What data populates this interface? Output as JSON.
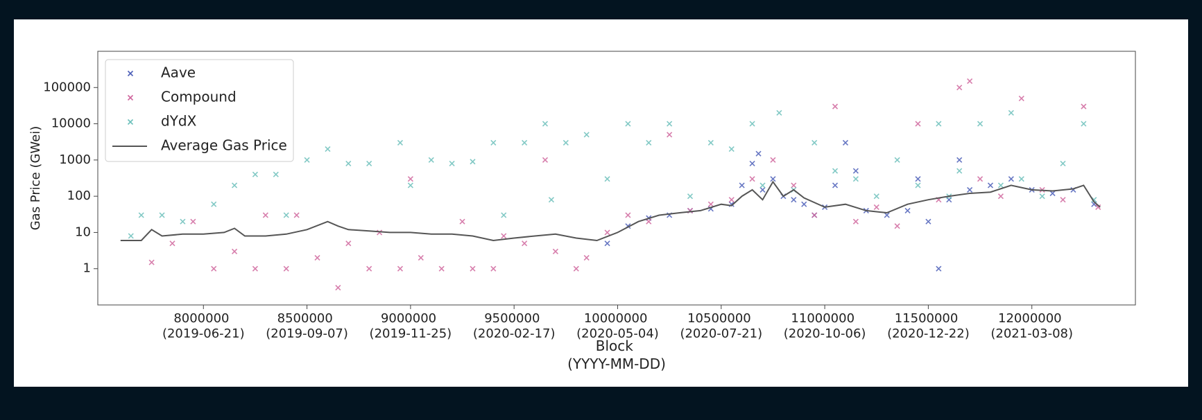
{
  "chart_data": {
    "type": "scatter",
    "xlabel": "Block (YYYY-MM-DD)",
    "ylabel": "Gas Price (GWei)",
    "yscale": "log",
    "xlim": [
      7490000,
      12500000
    ],
    "ylim": [
      0.1,
      1000000
    ],
    "xticks": [
      {
        "value": 8000000,
        "label": "8000000 (2019-06-21)"
      },
      {
        "value": 8500000,
        "label": "8500000 (2019-09-07)"
      },
      {
        "value": 9000000,
        "label": "9000000 (2019-11-25)"
      },
      {
        "value": 9500000,
        "label": "9500000 (2020-02-17)"
      },
      {
        "value": 10000000,
        "label": "10000000 (2020-05-04)"
      },
      {
        "value": 10500000,
        "label": "10500000 (2020-07-21)"
      },
      {
        "value": 11000000,
        "label": "11000000 (2020-10-06)"
      },
      {
        "value": 11500000,
        "label": "11500000 (2020-12-22)"
      },
      {
        "value": 12000000,
        "label": "12000000 (2021-03-08)"
      }
    ],
    "yticks": [
      1,
      10,
      100,
      1000,
      10000,
      100000
    ],
    "legend": "upper left",
    "series": [
      {
        "name": "Aave",
        "type": "scatter",
        "color": "#4c5fb8",
        "x": [
          9950000,
          10050000,
          10150000,
          10250000,
          10350000,
          10450000,
          10550000,
          10600000,
          10650000,
          10700000,
          10750000,
          10800000,
          10850000,
          10900000,
          10950000,
          11000000,
          11050000,
          11100000,
          11200000,
          11300000,
          11400000,
          11450000,
          11500000,
          11550000,
          11600000,
          11650000,
          11700000,
          11800000,
          11900000,
          12000000,
          12100000,
          12200000,
          12300000,
          10680000,
          11150000
        ],
        "values": [
          5,
          15,
          25,
          30,
          40,
          45,
          60,
          200,
          800,
          150,
          300,
          100,
          80,
          60,
          30,
          50,
          200,
          3000,
          40,
          30,
          40,
          300,
          20,
          1,
          80,
          1000,
          150,
          200,
          300,
          150,
          120,
          150,
          60,
          1500,
          500
        ]
      },
      {
        "name": "Compound",
        "type": "scatter",
        "color": "#d0679e",
        "x": [
          7750000,
          7850000,
          7950000,
          8050000,
          8150000,
          8250000,
          8300000,
          8400000,
          8450000,
          8550000,
          8650000,
          8700000,
          8800000,
          8850000,
          8950000,
          9000000,
          9050000,
          9150000,
          9250000,
          9300000,
          9400000,
          9450000,
          9550000,
          9650000,
          9700000,
          9800000,
          9850000,
          9950000,
          10050000,
          10150000,
          10250000,
          10350000,
          10450000,
          10550000,
          10650000,
          10750000,
          10850000,
          10950000,
          11050000,
          11150000,
          11250000,
          11350000,
          11450000,
          11550000,
          11650000,
          11700000,
          11750000,
          11850000,
          11950000,
          12050000,
          12150000,
          12250000,
          12320000
        ],
        "values": [
          1.5,
          5,
          20,
          1,
          3,
          1,
          30,
          1,
          30,
          2,
          0.3,
          5,
          1,
          10,
          1,
          300,
          2,
          1,
          20,
          1,
          1,
          8,
          5,
          1000,
          3,
          1,
          2,
          10,
          30,
          20,
          5000,
          40,
          60,
          80,
          300,
          1000,
          200,
          30,
          30000,
          20,
          50,
          15,
          10000,
          80,
          100000,
          150000,
          300,
          100,
          50000,
          150,
          80,
          30000,
          50
        ]
      },
      {
        "name": "dYdX",
        "type": "scatter",
        "color": "#6cc0bb",
        "x": [
          7650000,
          7700000,
          7800000,
          7900000,
          8050000,
          8150000,
          8250000,
          8350000,
          8400000,
          8500000,
          8600000,
          8700000,
          8800000,
          8950000,
          9000000,
          9100000,
          9200000,
          9300000,
          9400000,
          9450000,
          9550000,
          9650000,
          9680000,
          9750000,
          9850000,
          9950000,
          10050000,
          10150000,
          10250000,
          10350000,
          10450000,
          10550000,
          10650000,
          10700000,
          10780000,
          10850000,
          10950000,
          11050000,
          11150000,
          11250000,
          11350000,
          11450000,
          11550000,
          11600000,
          11650000,
          11750000,
          11850000,
          11900000,
          11950000,
          12050000,
          12150000,
          12250000,
          12300000
        ],
        "values": [
          8,
          30,
          30,
          20,
          60,
          200,
          400,
          400,
          30,
          1000,
          2000,
          800,
          800,
          3000,
          200,
          1000,
          800,
          900,
          3000,
          30,
          3000,
          10000,
          80,
          3000,
          5000,
          300,
          10000,
          3000,
          10000,
          100,
          3000,
          2000,
          10000,
          200,
          20000,
          150,
          3000,
          500,
          300,
          100,
          1000,
          200,
          10000,
          100,
          500,
          10000,
          200,
          20000,
          300,
          100,
          800,
          10000,
          80
        ]
      },
      {
        "name": "Average Gas Price",
        "type": "line",
        "color": "#555555",
        "x": [
          7600000,
          7700000,
          7750000,
          7800000,
          7900000,
          8000000,
          8100000,
          8150000,
          8200000,
          8300000,
          8400000,
          8500000,
          8600000,
          8650000,
          8700000,
          8800000,
          8900000,
          9000000,
          9100000,
          9200000,
          9300000,
          9400000,
          9500000,
          9600000,
          9700000,
          9800000,
          9900000,
          10000000,
          10100000,
          10200000,
          10300000,
          10400000,
          10500000,
          10550000,
          10600000,
          10650000,
          10700000,
          10750000,
          10800000,
          10850000,
          10900000,
          11000000,
          11100000,
          11200000,
          11300000,
          11400000,
          11500000,
          11600000,
          11700000,
          11800000,
          11900000,
          12000000,
          12100000,
          12200000,
          12250000,
          12300000,
          12330000
        ],
        "values": [
          6,
          6,
          12,
          8,
          9,
          9,
          10,
          13,
          8,
          8,
          9,
          12,
          20,
          15,
          12,
          11,
          10,
          10,
          9,
          9,
          8,
          6,
          7,
          8,
          9,
          7,
          6,
          10,
          20,
          30,
          35,
          40,
          60,
          55,
          100,
          150,
          80,
          250,
          100,
          150,
          90,
          50,
          60,
          40,
          35,
          60,
          80,
          100,
          120,
          130,
          200,
          150,
          140,
          160,
          200,
          70,
          50
        ]
      }
    ]
  }
}
